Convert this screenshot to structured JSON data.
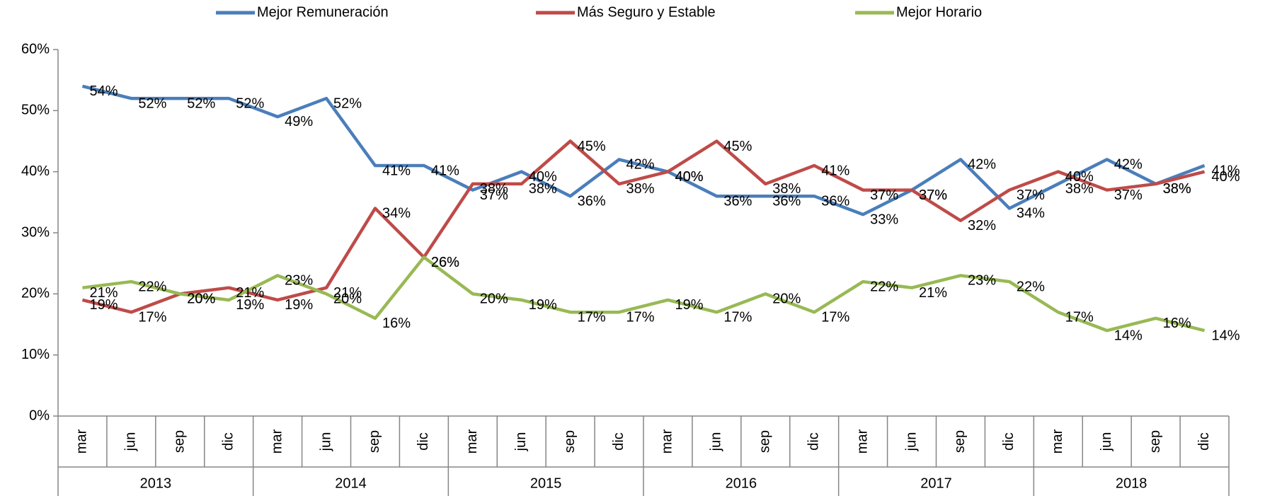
{
  "chart_data": {
    "type": "line",
    "categories": [
      "mar",
      "jun",
      "sep",
      "dic",
      "mar",
      "jun",
      "sep",
      "dic",
      "mar",
      "jun",
      "sep",
      "dic",
      "mar",
      "jun",
      "sep",
      "dic",
      "mar",
      "jun",
      "sep",
      "dic",
      "mar",
      "jun",
      "sep",
      "dic"
    ],
    "years": [
      "2013",
      "2014",
      "2015",
      "2016",
      "2017",
      "2018"
    ],
    "series": [
      {
        "name": "Mejor Remuneración",
        "color": "#4a7ebb",
        "values": [
          54,
          52,
          52,
          52,
          49,
          52,
          41,
          41,
          37,
          40,
          36,
          42,
          40,
          36,
          36,
          36,
          33,
          37,
          42,
          34,
          38,
          42,
          38,
          41
        ],
        "value_labels": [
          "54%",
          "52%",
          "52%",
          "52%",
          "49%",
          "52%",
          "41%",
          "41%",
          "37%",
          "40%",
          "36%",
          "42%",
          "40%",
          "36%",
          "36%",
          "36%",
          "33%",
          "37%",
          "42%",
          "34%",
          "38%",
          "42%",
          "38%",
          "41%"
        ]
      },
      {
        "name": "Más Seguro y Estable",
        "color": "#be4b48",
        "values": [
          19,
          17,
          20,
          21,
          19,
          21,
          34,
          26,
          38,
          38,
          45,
          38,
          40,
          45,
          38,
          41,
          37,
          37,
          32,
          37,
          40,
          37,
          38,
          40
        ],
        "value_labels": [
          "19%",
          "17%",
          "20%",
          "21%",
          "19%",
          "21%",
          "34%",
          "26%",
          "38%",
          "38%",
          "45%",
          "38%",
          "40%",
          "45%",
          "38%",
          "41%",
          "37%",
          "37%",
          "32%",
          "37%",
          "40%",
          "37%",
          "38%",
          "40%"
        ]
      },
      {
        "name": "Mejor Horario",
        "color": "#98b954",
        "values": [
          21,
          22,
          20,
          19,
          23,
          20,
          16,
          26,
          20,
          19,
          17,
          17,
          19,
          17,
          20,
          17,
          22,
          21,
          23,
          22,
          17,
          14,
          16,
          14
        ],
        "value_labels": [
          "21%",
          "22%",
          "20%",
          "19%",
          "23%",
          "20%",
          "16%",
          "26%",
          "20%",
          "19%",
          "17%",
          "17%",
          "19%",
          "17%",
          "20%",
          "17%",
          "22%",
          "21%",
          "23%",
          "22%",
          "17%",
          "14%",
          "16%",
          "14%"
        ]
      }
    ],
    "ylim": [
      0,
      60
    ],
    "yticks": [
      {
        "value": 0,
        "label": "0%"
      },
      {
        "value": 10,
        "label": "10%"
      },
      {
        "value": 20,
        "label": "20%"
      },
      {
        "value": 30,
        "label": "30%"
      },
      {
        "value": 40,
        "label": "40%"
      },
      {
        "value": 50,
        "label": "50%"
      },
      {
        "value": 60,
        "label": "60%"
      }
    ],
    "grid": false,
    "legend": "top"
  }
}
